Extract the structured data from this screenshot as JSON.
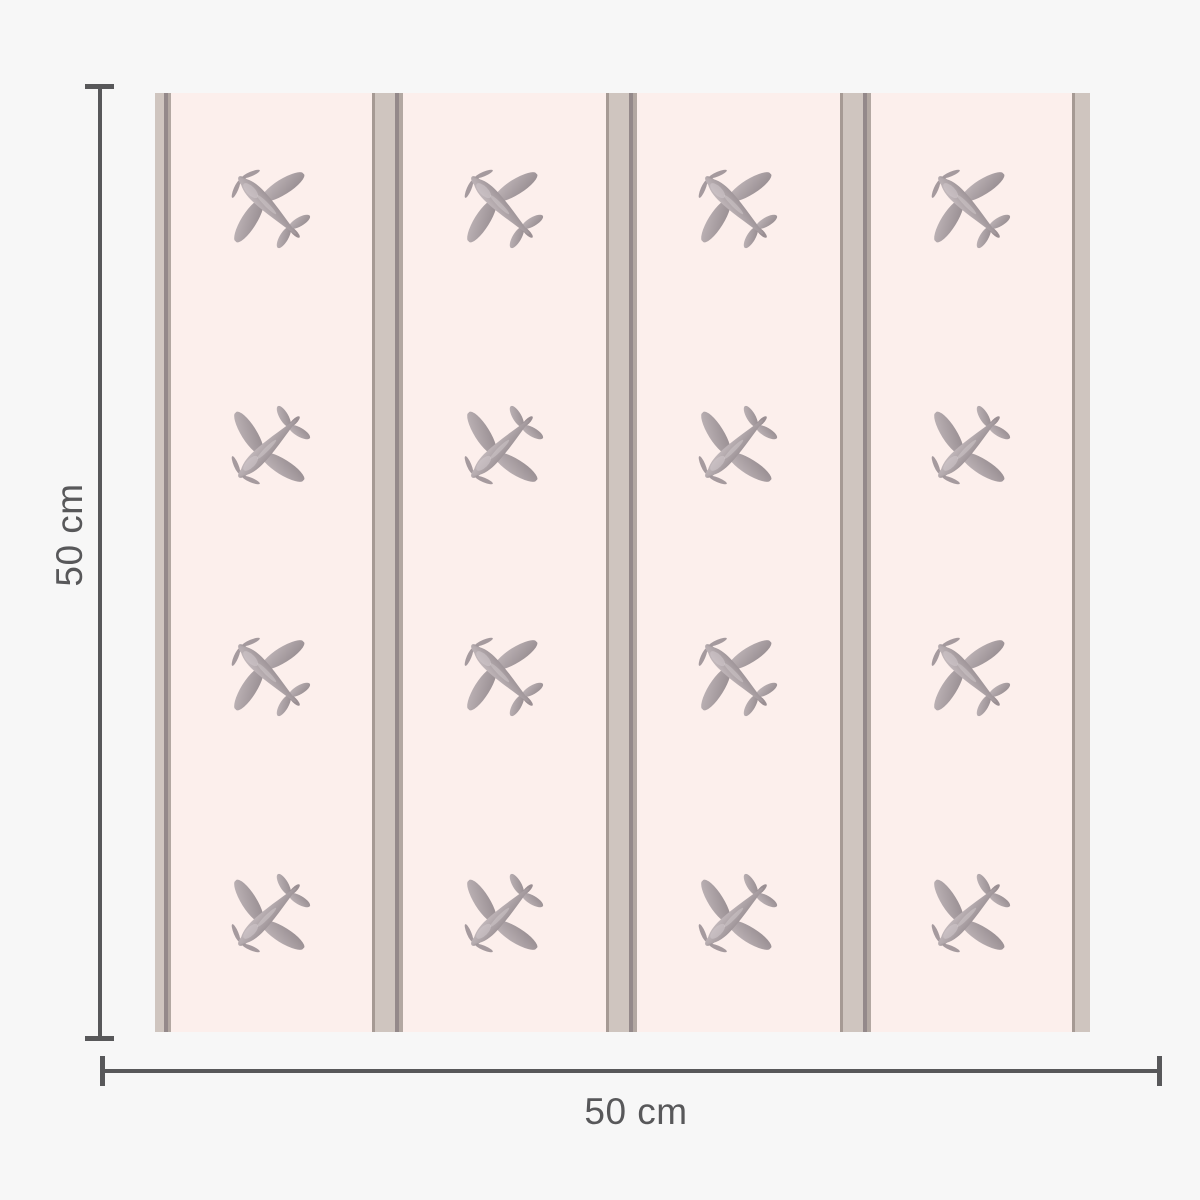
{
  "figure": {
    "type": "wallpaper-dimension-diagram",
    "vertical_dimension": {
      "label": "50 cm"
    },
    "horizontal_dimension": {
      "label": "50 cm"
    },
    "dimension_color": "#58585a",
    "page_background": "#f7f7f7"
  },
  "swatch": {
    "rows": 4,
    "columns": 4,
    "background_color": "#fcefec",
    "motif": "vintage-airplane",
    "stripe_colors": {
      "center": "#cfc5bf",
      "dark_edge": "#94898a",
      "mid_edge": "#b3a8a2",
      "left_dark": "#a69a94"
    },
    "plane_colors": {
      "wing_light": "#c0b6b9",
      "wing_dark": "#948a8e",
      "body_light": "#c6bcbf",
      "body_dark": "#9b9195",
      "blade": "#a59a9e",
      "tail_tip": "#9a8f93",
      "highlight": "#d2c9cc"
    }
  }
}
